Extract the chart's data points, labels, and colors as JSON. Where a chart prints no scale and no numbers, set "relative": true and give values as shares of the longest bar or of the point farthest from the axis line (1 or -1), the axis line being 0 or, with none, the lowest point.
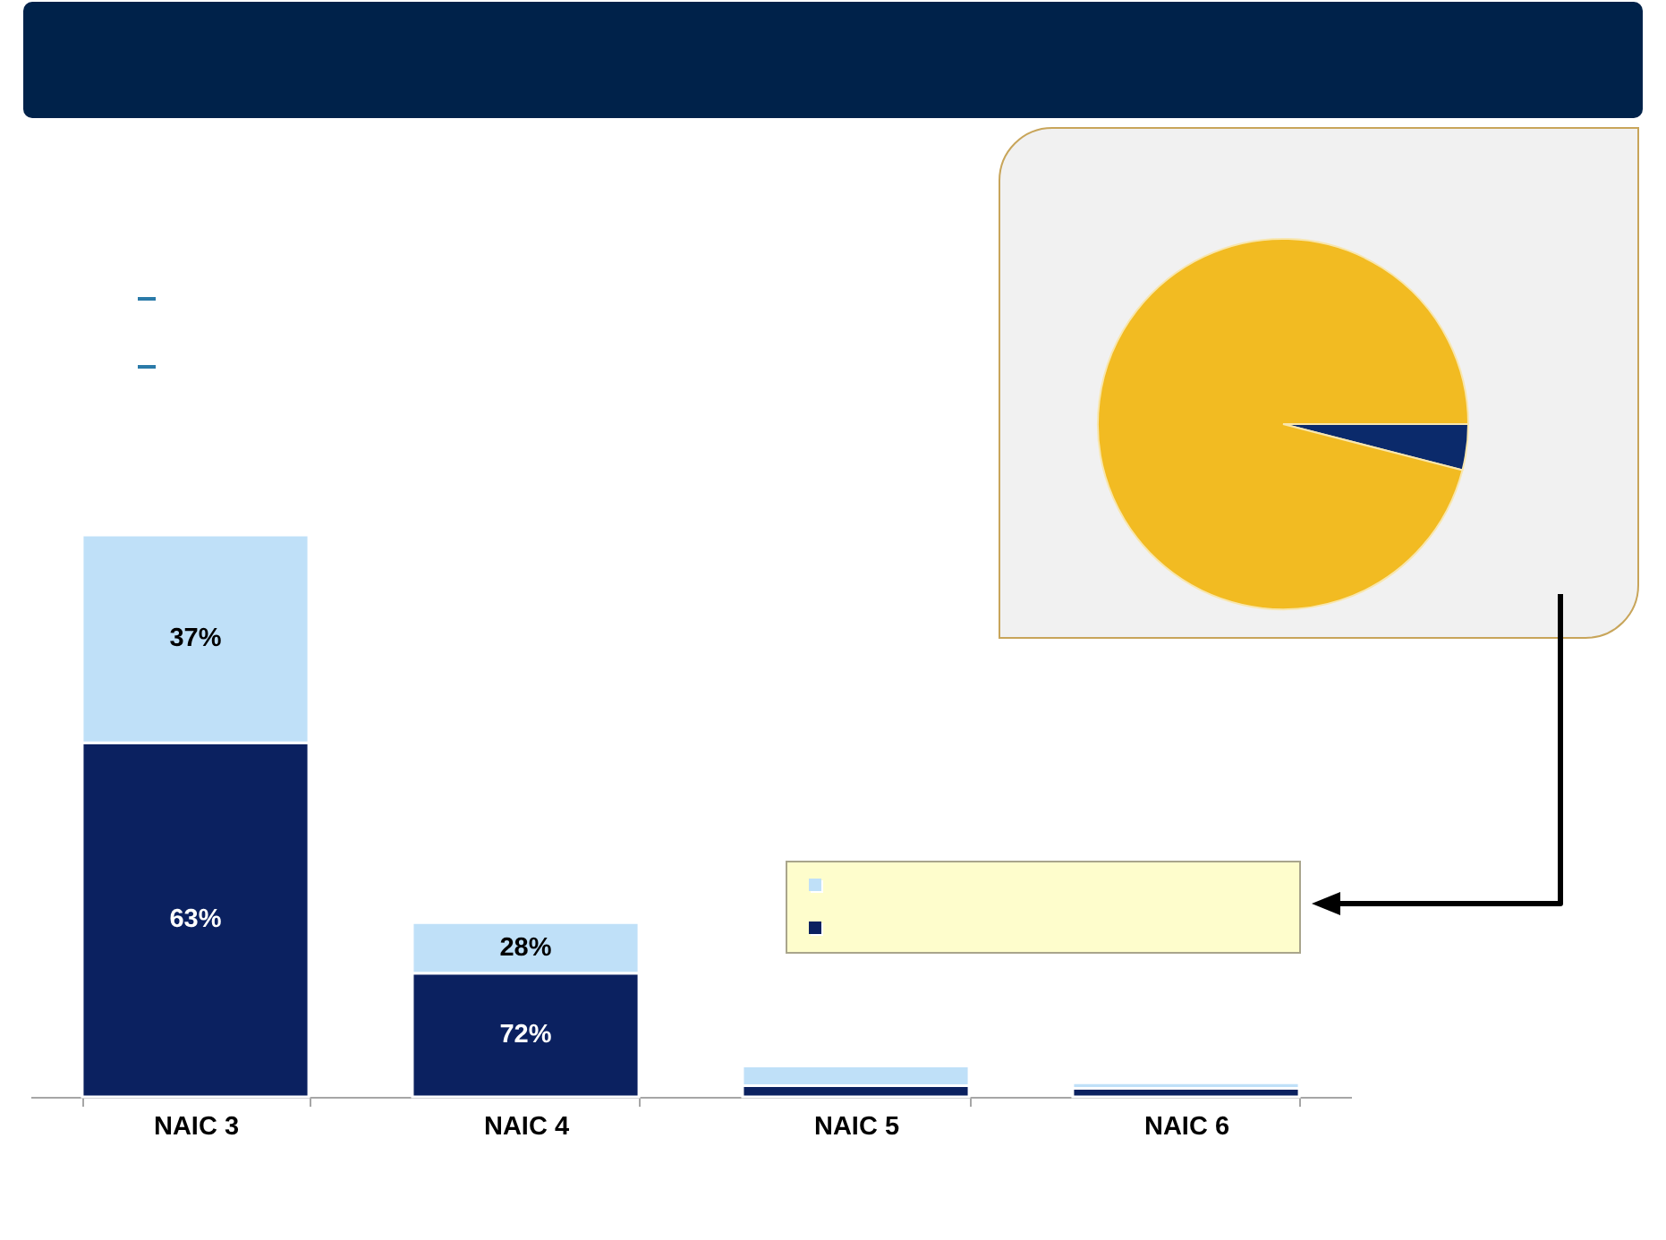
{
  "chart_data": [
    {
      "type": "pie",
      "categories": [
        null,
        null
      ],
      "values": [
        4,
        96
      ],
      "colors": [
        "#0b2a6b",
        "#f2bb22"
      ]
    },
    {
      "type": "bar",
      "stacked": true,
      "relative": true,
      "categories": [
        "NAIC 3",
        "NAIC 4",
        "NAIC 5",
        "NAIC 6"
      ],
      "series": [
        {
          "color": "#0b2160",
          "values": [
            0.63,
            0.22,
            0.02,
            0.015
          ]
        },
        {
          "color": "#bfe0f8",
          "values": [
            0.37,
            0.09,
            0.035,
            0.01
          ]
        }
      ],
      "annotations": [
        "37%",
        "63%",
        "28%",
        "72%"
      ]
    }
  ]
}
